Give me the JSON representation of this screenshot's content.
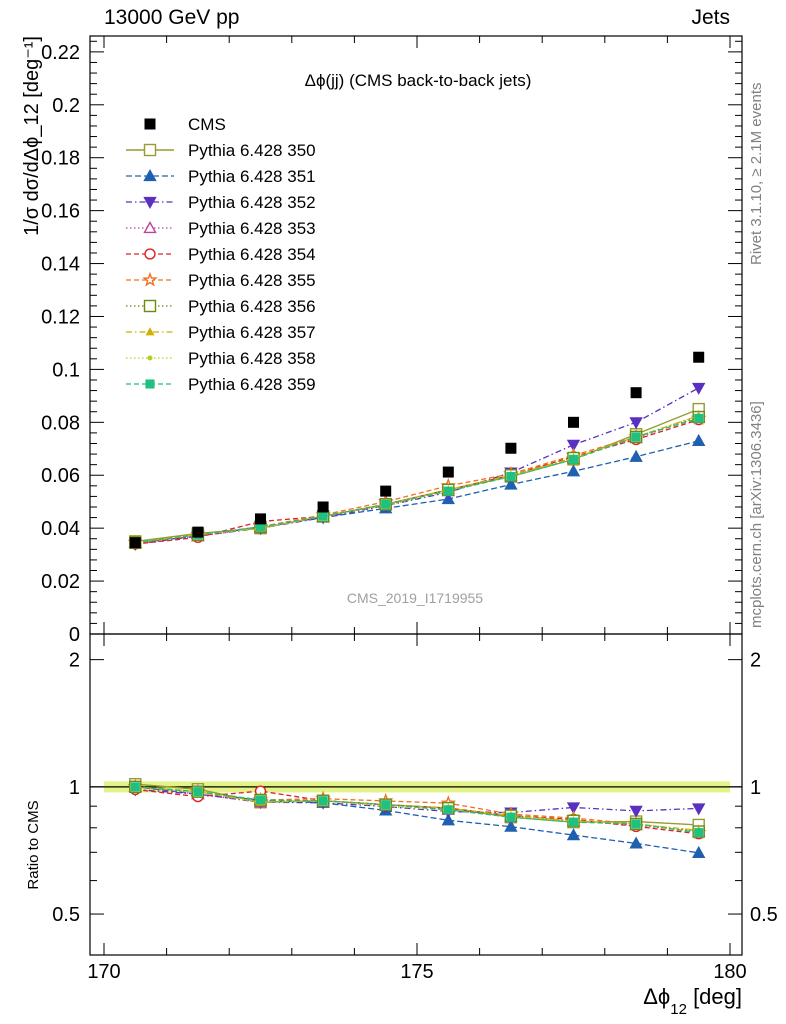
{
  "header": {
    "left": "13000 GeV pp",
    "right": "Jets"
  },
  "side": {
    "top": "Rivet 3.1.10, ≥ 2.1M events",
    "bottom": "mcplots.cern.ch [arXiv:1306.3436]"
  },
  "chart_data": {
    "type": "scatter",
    "title": "Δϕ(jj) (CMS back-to-back jets)",
    "watermark": "CMS_2019_I1719955",
    "xlabel": "Δϕ",
    "xlabel_sub": "12",
    "xlabel_unit": " [deg]",
    "ylabel_main": "1/σ dσ/dΔϕ_12 [deg⁻¹]",
    "ylabel_ratio": "Ratio to CMS",
    "xlim": [
      170,
      180
    ],
    "ylim": [
      0,
      0.226
    ],
    "ratio_ylim": [
      0.4,
      2.3
    ],
    "x_ticks": [
      "170",
      "175",
      "180"
    ],
    "y_ticks": [
      "0",
      "0.02",
      "0.04",
      "0.06",
      "0.08",
      "0.1",
      "0.12",
      "0.14",
      "0.16",
      "0.18",
      "0.2",
      "0.22"
    ],
    "ratio_ticks": [
      "0.5",
      "1",
      "2"
    ],
    "x": [
      170.5,
      171.5,
      172.5,
      173.5,
      174.5,
      175.5,
      176.5,
      177.5,
      178.5,
      179.5
    ],
    "data": {
      "name": "CMS",
      "values": [
        0.0345,
        0.0385,
        0.0435,
        0.048,
        0.054,
        0.0612,
        0.0702,
        0.08,
        0.0912,
        0.1046
      ]
    },
    "series": [
      {
        "name": "Pythia 6.428 350",
        "color": "#9a9a30",
        "marker": "square-open",
        "dash": "",
        "width": 1.4,
        "values": [
          0.035,
          0.038,
          0.04,
          0.0445,
          0.049,
          0.0545,
          0.0595,
          0.066,
          0.0755,
          0.085
        ]
      },
      {
        "name": "Pythia 6.428 351",
        "color": "#2060b0",
        "marker": "triangle",
        "dash": "6,3",
        "values": [
          0.0345,
          0.037,
          0.0405,
          0.044,
          0.0475,
          0.051,
          0.0565,
          0.0615,
          0.067,
          0.073
        ]
      },
      {
        "name": "Pythia 6.428 352",
        "color": "#5a30c0",
        "marker": "triangle-down",
        "dash": "6,3,1.5,3",
        "values": [
          0.034,
          0.037,
          0.04,
          0.044,
          0.0485,
          0.0535,
          0.061,
          0.0715,
          0.08,
          0.093
        ]
      },
      {
        "name": "Pythia 6.428 353",
        "color": "#c040a0",
        "marker": "triangle-open",
        "dash": "1.5,2.5",
        "values": [
          0.0345,
          0.037,
          0.04,
          0.0445,
          0.049,
          0.054,
          0.0595,
          0.0665,
          0.074,
          0.082
        ]
      },
      {
        "name": "Pythia 6.428 354",
        "color": "#e02020",
        "marker": "circle-open",
        "dash": "5,3",
        "values": [
          0.034,
          0.0365,
          0.0425,
          0.0445,
          0.049,
          0.0545,
          0.06,
          0.067,
          0.0735,
          0.081
        ]
      },
      {
        "name": "Pythia 6.428 355",
        "color": "#f07020",
        "marker": "star-open",
        "dash": "5,3",
        "values": [
          0.0345,
          0.0375,
          0.0405,
          0.045,
          0.05,
          0.056,
          0.0605,
          0.0675,
          0.0745,
          0.0815
        ]
      },
      {
        "name": "Pythia 6.428 356",
        "color": "#6a8a10",
        "marker": "square-open",
        "dash": "1.5,2.5",
        "values": [
          0.0345,
          0.0375,
          0.0405,
          0.0445,
          0.049,
          0.0545,
          0.06,
          0.0665,
          0.0745,
          0.082
        ]
      },
      {
        "name": "Pythia 6.428 357",
        "color": "#d0b000",
        "marker": "tri-small",
        "dash": "6,3,1.5,3",
        "values": [
          0.0345,
          0.0375,
          0.04,
          0.0445,
          0.049,
          0.0545,
          0.06,
          0.0665,
          0.0745,
          0.0825
        ]
      },
      {
        "name": "Pythia 6.428 358",
        "color": "#b0d020",
        "marker": "dot",
        "dash": "1.5,2.5",
        "values": [
          0.0345,
          0.0375,
          0.04,
          0.0445,
          0.0485,
          0.054,
          0.0595,
          0.0665,
          0.0745,
          0.0825
        ]
      },
      {
        "name": "Pythia 6.428 359",
        "color": "#20c080",
        "marker": "square-small",
        "dash": "5,3",
        "values": [
          0.0345,
          0.0375,
          0.0405,
          0.0445,
          0.049,
          0.054,
          0.0595,
          0.066,
          0.0745,
          0.0815
        ]
      }
    ]
  }
}
